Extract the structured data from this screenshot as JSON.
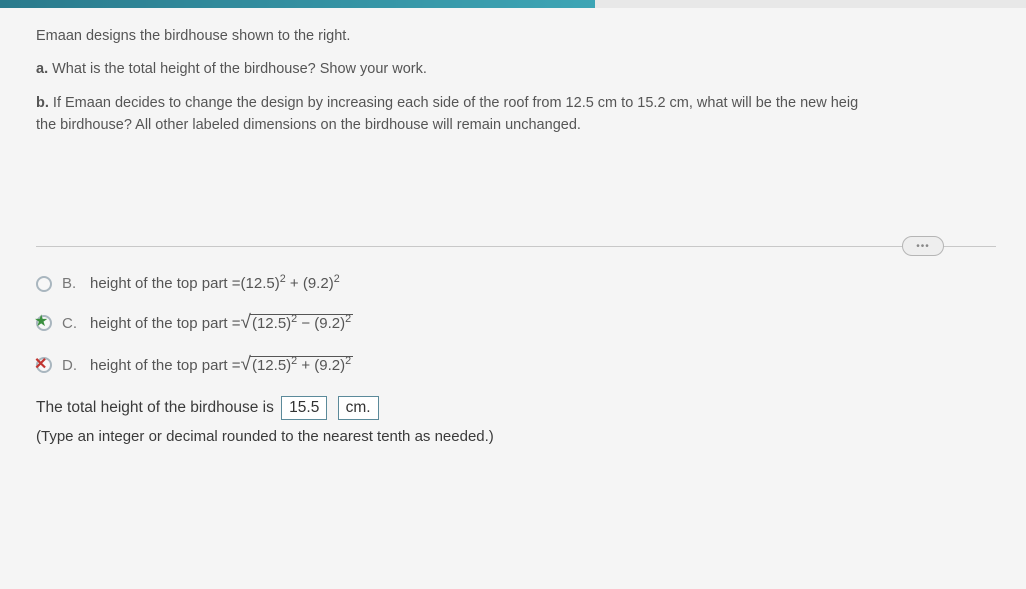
{
  "colors": {
    "progress_fill": "#3da5b5",
    "progress_bg": "#e8e8e8",
    "text": "#555555",
    "border_box": "#5b8a9a",
    "correct_mark": "#3a8f3f",
    "wrong_mark": "#c23530",
    "hr": "#c8c8c8"
  },
  "prompt": {
    "intro": "Emaan designs the birdhouse shown to the right.",
    "a_label": "a.",
    "a_text": "What is the total height of the birdhouse? Show your work.",
    "b_label": "b.",
    "b_text": "If Emaan decides to change the design by increasing each side of the roof from 12.5 cm to 15.2 cm, what will be the new heig",
    "b_cont": "the birdhouse? All other labeled dimensions on the birdhouse will remain unchanged."
  },
  "more_button": "•••",
  "options": {
    "b": {
      "letter": "B.",
      "prefix": "height of the top part = ",
      "expr_a": "(12.5)",
      "op": " + ",
      "expr_b": "(9.2)",
      "has_sqrt": false
    },
    "c": {
      "letter": "C.",
      "prefix": "height of the top part = ",
      "expr_a": "(12.5)",
      "op": " − ",
      "expr_b": "(9.2)",
      "has_sqrt": true,
      "mark": "star"
    },
    "d": {
      "letter": "D.",
      "prefix": "height of the top part = ",
      "expr_a": "(12.5)",
      "op": " + ",
      "expr_b": "(9.2)",
      "has_sqrt": true,
      "mark": "x"
    }
  },
  "answer": {
    "lead": "The total height of the birdhouse is ",
    "value": "15.5",
    "unit": "cm.",
    "hint": "(Type an integer or decimal rounded to the nearest tenth as needed.)"
  }
}
